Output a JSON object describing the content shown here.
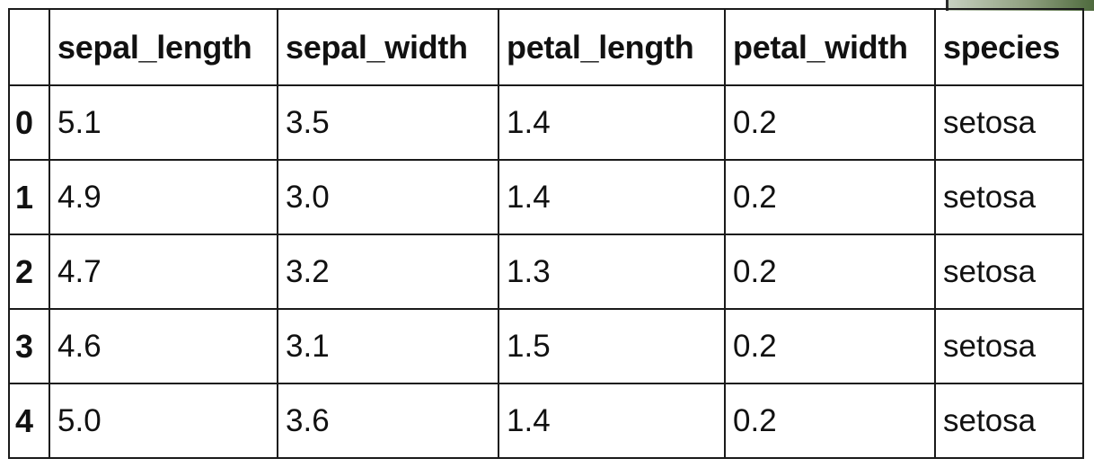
{
  "table": {
    "index_header": "",
    "columns": [
      "sepal_length",
      "sepal_width",
      "petal_length",
      "petal_width",
      "species"
    ],
    "rows": [
      {
        "index": "0",
        "cells": [
          "5.1",
          "3.5",
          "1.4",
          "0.2",
          "setosa"
        ]
      },
      {
        "index": "1",
        "cells": [
          "4.9",
          "3.0",
          "1.4",
          "0.2",
          "setosa"
        ]
      },
      {
        "index": "2",
        "cells": [
          "4.7",
          "3.2",
          "1.3",
          "0.2",
          "setosa"
        ]
      },
      {
        "index": "3",
        "cells": [
          "4.6",
          "3.1",
          "1.5",
          "0.2",
          "setosa"
        ]
      },
      {
        "index": "4",
        "cells": [
          "5.0",
          "3.6",
          "1.4",
          "0.2",
          "setosa"
        ]
      }
    ]
  }
}
